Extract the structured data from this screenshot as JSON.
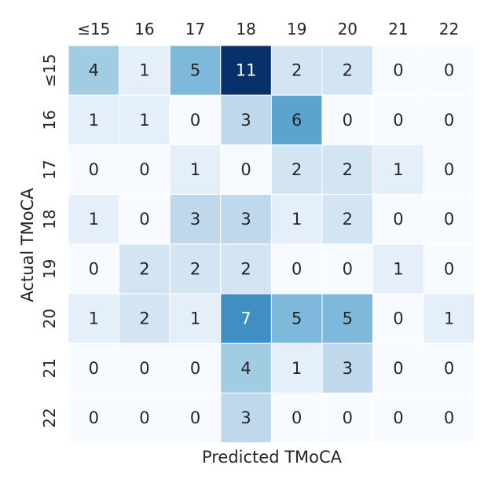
{
  "chart_data": {
    "type": "heatmap",
    "title": "",
    "xlabel": "Predicted TMoCA",
    "ylabel": "Actual TMoCA",
    "x_categories": [
      "≤15",
      "16",
      "17",
      "18",
      "19",
      "20",
      "21",
      "22"
    ],
    "y_categories": [
      "≤15",
      "16",
      "17",
      "18",
      "19",
      "20",
      "21",
      "22"
    ],
    "values": [
      [
        4,
        1,
        5,
        11,
        2,
        2,
        0,
        0
      ],
      [
        1,
        1,
        0,
        3,
        6,
        0,
        0,
        0
      ],
      [
        0,
        0,
        1,
        0,
        2,
        2,
        1,
        0
      ],
      [
        1,
        0,
        3,
        3,
        1,
        2,
        0,
        0
      ],
      [
        0,
        2,
        2,
        2,
        0,
        0,
        1,
        0
      ],
      [
        1,
        2,
        1,
        7,
        5,
        5,
        0,
        1
      ],
      [
        0,
        0,
        0,
        4,
        1,
        3,
        0,
        0
      ],
      [
        0,
        0,
        0,
        3,
        0,
        0,
        0,
        0
      ]
    ],
    "colormap": "Blues",
    "color_range": [
      0,
      11
    ],
    "x_axis_position": "top",
    "colorbar": false,
    "grid": false
  }
}
